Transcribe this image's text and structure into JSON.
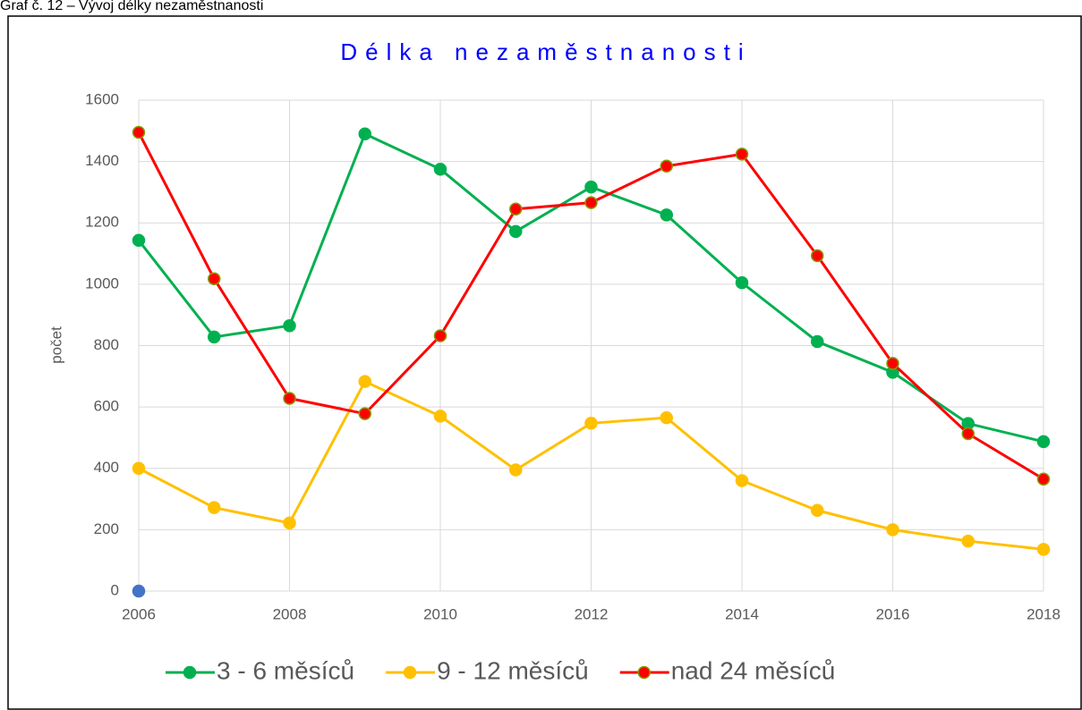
{
  "caption": "Graf č. 12 – Vývoj délky nezaměstnanosti",
  "chart_data": {
    "type": "line",
    "title": "Délka nezaměstnanosti",
    "ylabel": "počet",
    "x": [
      2006,
      2007,
      2008,
      2009,
      2010,
      2011,
      2012,
      2013,
      2014,
      2015,
      2016,
      2017,
      2018
    ],
    "xlim": [
      2006,
      2018
    ],
    "xticks": [
      2006,
      2008,
      2010,
      2012,
      2014,
      2016,
      2018
    ],
    "ylim": [
      0,
      1600
    ],
    "yticks": [
      0,
      200,
      400,
      600,
      800,
      1000,
      1200,
      1400,
      1600
    ],
    "grid": true,
    "legend": "bottom",
    "series": [
      {
        "name": "3 - 6 měsíců",
        "color": "#00b050",
        "values": [
          1143,
          828,
          865,
          1490,
          1375,
          1172,
          1317,
          1226,
          1005,
          813,
          713,
          546,
          487
        ]
      },
      {
        "name": "9 - 12 měsíců",
        "color": "#ffc000",
        "values": [
          400,
          272,
          222,
          683,
          570,
          395,
          547,
          565,
          360,
          263,
          200,
          163,
          136
        ]
      },
      {
        "name": "nad 24 měsíců",
        "color": "#ff0000",
        "values": [
          1495,
          1018,
          628,
          578,
          832,
          1245,
          1266,
          1385,
          1424,
          1093,
          742,
          513,
          365
        ]
      },
      {
        "color": "#4472c4",
        "values": [
          0,
          null,
          null,
          null,
          null,
          null,
          null,
          null,
          null,
          null,
          null,
          null,
          null
        ]
      }
    ]
  }
}
